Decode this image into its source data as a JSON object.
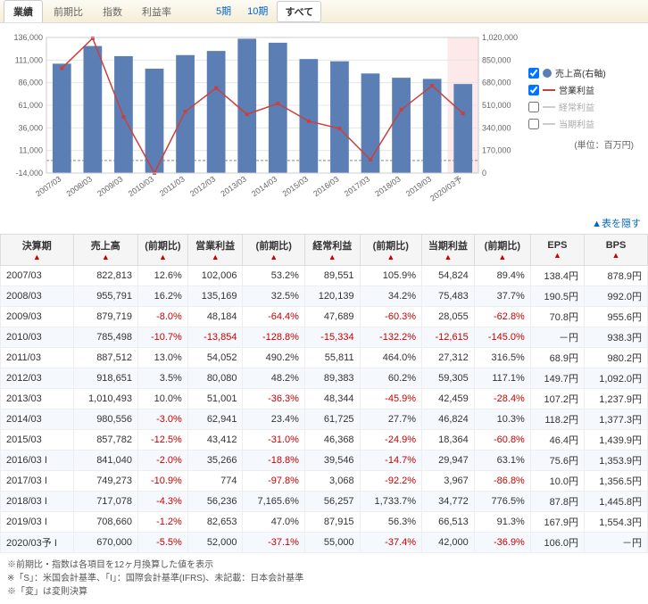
{
  "tabs1": [
    {
      "label": "業績",
      "active": true
    },
    {
      "label": "前期比"
    },
    {
      "label": "指数"
    },
    {
      "label": "利益率"
    }
  ],
  "tabs2": [
    {
      "label": "5期"
    },
    {
      "label": "10期"
    },
    {
      "label": "すべて",
      "active": true
    }
  ],
  "chart": {
    "type": "bar+line",
    "left_axis": {
      "min": -14000,
      "max": 136000,
      "ticks": [
        -14000,
        11000,
        36000,
        61000,
        86000,
        111000,
        136000
      ]
    },
    "right_axis": {
      "min": 0,
      "max": 1020000,
      "ticks": [
        0,
        170000,
        340000,
        510000,
        680000,
        850000,
        1020000
      ]
    },
    "categories": [
      "2007/03",
      "2008/03",
      "2009/03",
      "2010/03",
      "2011/03",
      "2012/03",
      "2013/03",
      "2014/03",
      "2015/03",
      "2016/03",
      "2017/03",
      "2018/03",
      "2019/03",
      "2020/03予"
    ],
    "bars": [
      822813,
      955791,
      879719,
      785498,
      887512,
      918651,
      1010493,
      980556,
      857782,
      841040,
      749273,
      717078,
      708660,
      670000
    ],
    "line": [
      102006,
      135169,
      48184,
      -13854,
      54052,
      80080,
      51001,
      62941,
      43412,
      35266,
      774,
      56236,
      82653,
      52000
    ],
    "bar_color": "#5b7fb4",
    "line_color": "#c94040",
    "grid_color": "#e5e5e5",
    "zero_dash": "#888",
    "bg": "#ffffff",
    "forecast_bg": "#fde8ea"
  },
  "legend": [
    {
      "checked": true,
      "swatch": "#5b7fb4",
      "shape": "circle",
      "label": "売上高(右軸)"
    },
    {
      "checked": true,
      "swatch": "#c94040",
      "shape": "line",
      "label": "営業利益"
    },
    {
      "checked": false,
      "swatch": "#ccc",
      "shape": "line",
      "label": "経常利益"
    },
    {
      "checked": false,
      "swatch": "#ccc",
      "shape": "line",
      "label": "当期利益"
    }
  ],
  "unit_label": "(単位：百万円)",
  "hide_label": "表を隠す",
  "columns": [
    "決算期",
    "売上高",
    "(前期比)",
    "営業利益",
    "(前期比)",
    "経常利益",
    "(前期比)",
    "当期利益",
    "(前期比)",
    "EPS",
    "BPS"
  ],
  "rows": [
    {
      "period": "2007/03",
      "sales": "822,813",
      "sales_yoy": "12.6%",
      "op": "102,006",
      "op_yoy": "53.2%",
      "ord": "89,551",
      "ord_yoy": "105.9%",
      "net": "54,824",
      "net_yoy": "89.4%",
      "eps": "138.4円",
      "bps": "878.9円"
    },
    {
      "period": "2008/03",
      "sales": "955,791",
      "sales_yoy": "16.2%",
      "op": "135,169",
      "op_yoy": "32.5%",
      "ord": "120,139",
      "ord_yoy": "34.2%",
      "net": "75,483",
      "net_yoy": "37.7%",
      "eps": "190.5円",
      "bps": "992.0円"
    },
    {
      "period": "2009/03",
      "sales": "879,719",
      "sales_yoy": "-8.0%",
      "op": "48,184",
      "op_yoy": "-64.4%",
      "ord": "47,689",
      "ord_yoy": "-60.3%",
      "net": "28,055",
      "net_yoy": "-62.8%",
      "eps": "70.8円",
      "bps": "955.6円"
    },
    {
      "period": "2010/03",
      "sales": "785,498",
      "sales_yoy": "-10.7%",
      "op": "-13,854",
      "op_yoy": "-128.8%",
      "ord": "-15,334",
      "ord_yoy": "-132.2%",
      "net": "-12,615",
      "net_yoy": "-145.0%",
      "eps": "－円",
      "bps": "938.3円"
    },
    {
      "period": "2011/03",
      "sales": "887,512",
      "sales_yoy": "13.0%",
      "op": "54,052",
      "op_yoy": "490.2%",
      "ord": "55,811",
      "ord_yoy": "464.0%",
      "net": "27,312",
      "net_yoy": "316.5%",
      "eps": "68.9円",
      "bps": "980.2円"
    },
    {
      "period": "2012/03",
      "sales": "918,651",
      "sales_yoy": "3.5%",
      "op": "80,080",
      "op_yoy": "48.2%",
      "ord": "89,383",
      "ord_yoy": "60.2%",
      "net": "59,305",
      "net_yoy": "117.1%",
      "eps": "149.7円",
      "bps": "1,092.0円"
    },
    {
      "period": "2013/03",
      "sales": "1,010,493",
      "sales_yoy": "10.0%",
      "op": "51,001",
      "op_yoy": "-36.3%",
      "ord": "48,344",
      "ord_yoy": "-45.9%",
      "net": "42,459",
      "net_yoy": "-28.4%",
      "eps": "107.2円",
      "bps": "1,237.9円"
    },
    {
      "period": "2014/03",
      "sales": "980,556",
      "sales_yoy": "-3.0%",
      "op": "62,941",
      "op_yoy": "23.4%",
      "ord": "61,725",
      "ord_yoy": "27.7%",
      "net": "46,824",
      "net_yoy": "10.3%",
      "eps": "118.2円",
      "bps": "1,377.3円"
    },
    {
      "period": "2015/03",
      "sales": "857,782",
      "sales_yoy": "-12.5%",
      "op": "43,412",
      "op_yoy": "-31.0%",
      "ord": "46,368",
      "ord_yoy": "-24.9%",
      "net": "18,364",
      "net_yoy": "-60.8%",
      "eps": "46.4円",
      "bps": "1,439.9円"
    },
    {
      "period": "2016/03 I",
      "sales": "841,040",
      "sales_yoy": "-2.0%",
      "op": "35,266",
      "op_yoy": "-18.8%",
      "ord": "39,546",
      "ord_yoy": "-14.7%",
      "net": "29,947",
      "net_yoy": "63.1%",
      "eps": "75.6円",
      "bps": "1,353.9円"
    },
    {
      "period": "2017/03 I",
      "sales": "749,273",
      "sales_yoy": "-10.9%",
      "op": "774",
      "op_yoy": "-97.8%",
      "ord": "3,068",
      "ord_yoy": "-92.2%",
      "net": "3,967",
      "net_yoy": "-86.8%",
      "eps": "10.0円",
      "bps": "1,356.5円"
    },
    {
      "period": "2018/03 I",
      "sales": "717,078",
      "sales_yoy": "-4.3%",
      "op": "56,236",
      "op_yoy": "7,165.6%",
      "ord": "56,257",
      "ord_yoy": "1,733.7%",
      "net": "34,772",
      "net_yoy": "776.5%",
      "eps": "87.8円",
      "bps": "1,445.8円"
    },
    {
      "period": "2019/03 I",
      "sales": "708,660",
      "sales_yoy": "-1.2%",
      "op": "82,653",
      "op_yoy": "47.0%",
      "ord": "87,915",
      "ord_yoy": "56.3%",
      "net": "66,513",
      "net_yoy": "91.3%",
      "eps": "167.9円",
      "bps": "1,554.3円"
    },
    {
      "period": "2020/03予 I",
      "sales": "670,000",
      "sales_yoy": "-5.5%",
      "op": "52,000",
      "op_yoy": "-37.1%",
      "ord": "55,000",
      "ord_yoy": "-37.4%",
      "net": "42,000",
      "net_yoy": "-36.9%",
      "eps": "106.0円",
      "bps": "－円"
    }
  ],
  "footnotes": [
    "※前期比・指数は各項目を12ヶ月換算した値を表示",
    "※「S」：米国会計基準、「I」：国際会計基準(IFRS)、未記載：日本会計基準",
    "※「変」は変則決算"
  ]
}
